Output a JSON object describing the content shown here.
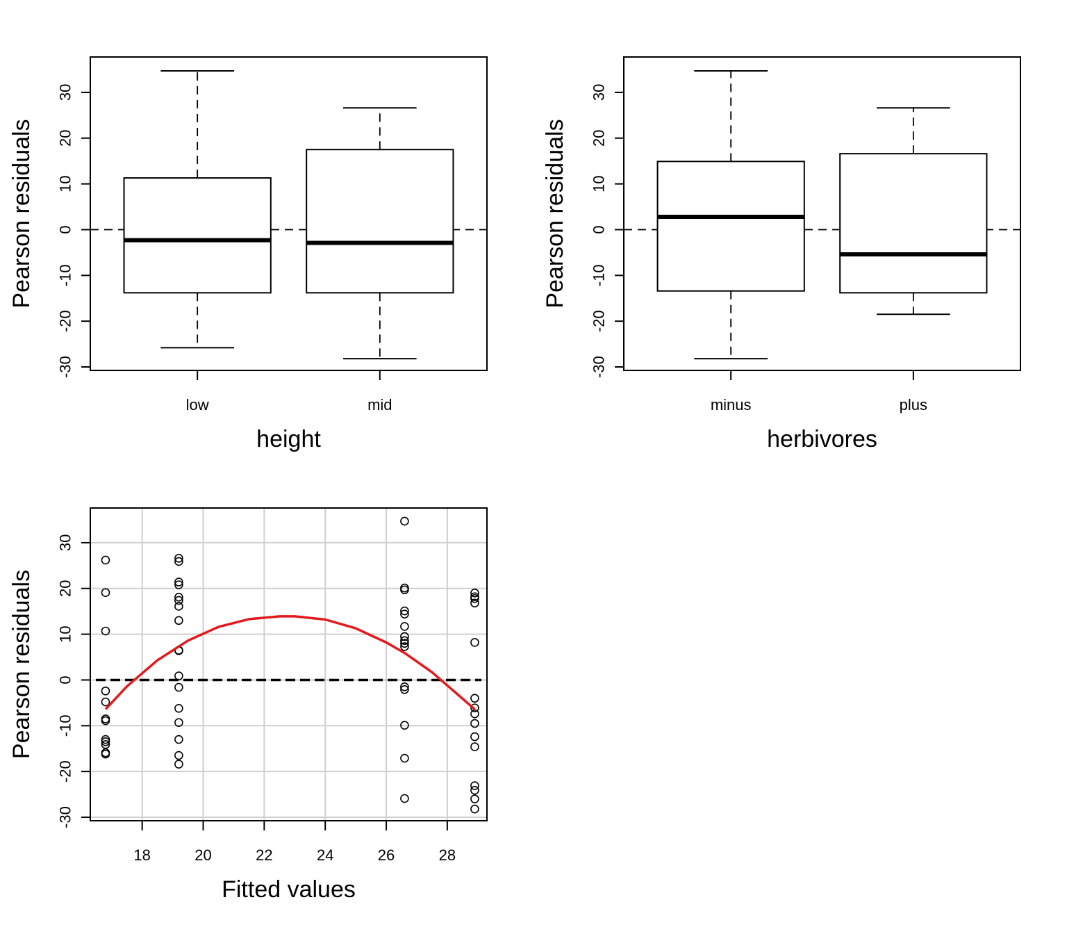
{
  "chart_data": [
    {
      "type": "box",
      "xlabel": "height",
      "ylabel": "Pearson residuals",
      "ylim": [
        -30,
        35
      ],
      "yticks": [
        -30,
        -20,
        -10,
        0,
        10,
        20,
        30
      ],
      "reference_line": {
        "y": 0,
        "style": "dashed"
      },
      "categories": [
        "low",
        "mid"
      ],
      "boxes": [
        {
          "category": "low",
          "whisker_low": -25.8,
          "q1": -13.8,
          "median": -2.3,
          "q3": 11.3,
          "whisker_high": 34.7
        },
        {
          "category": "mid",
          "whisker_low": -28.2,
          "q1": -13.8,
          "median": -2.9,
          "q3": 17.5,
          "whisker_high": 26.6
        }
      ]
    },
    {
      "type": "box",
      "xlabel": "herbivores",
      "ylabel": "Pearson residuals",
      "ylim": [
        -30,
        35
      ],
      "yticks": [
        -30,
        -20,
        -10,
        0,
        10,
        20,
        30
      ],
      "reference_line": {
        "y": 0,
        "style": "dashed"
      },
      "categories": [
        "minus",
        "plus"
      ],
      "boxes": [
        {
          "category": "minus",
          "whisker_low": -28.2,
          "q1": -13.4,
          "median": 2.8,
          "q3": 14.9,
          "whisker_high": 34.7
        },
        {
          "category": "plus",
          "whisker_low": -18.5,
          "q1": -13.8,
          "median": -5.4,
          "q3": 16.6,
          "whisker_high": 26.6
        }
      ]
    },
    {
      "type": "scatter",
      "xlabel": "Fitted values",
      "ylabel": "Pearson residuals",
      "xlim": [
        16.3,
        29.3
      ],
      "ylim": [
        -30,
        35
      ],
      "xticks": [
        18,
        20,
        22,
        24,
        26,
        28
      ],
      "yticks": [
        -30,
        -20,
        -10,
        0,
        10,
        20,
        30
      ],
      "grid": true,
      "reference_line": {
        "y": 0,
        "style": "dashed",
        "weight": "bold"
      },
      "smoother": {
        "color": "#e31a1c",
        "points": [
          [
            16.8,
            -6.4
          ],
          [
            17.5,
            -1.4
          ],
          [
            18.5,
            4.3
          ],
          [
            19.5,
            8.6
          ],
          [
            20.5,
            11.6
          ],
          [
            21.5,
            13.3
          ],
          [
            22.5,
            13.9
          ],
          [
            23.0,
            13.9
          ],
          [
            24.0,
            13.2
          ],
          [
            25.0,
            11.3
          ],
          [
            26.0,
            8.2
          ],
          [
            26.6,
            5.9
          ],
          [
            27.5,
            1.7
          ],
          [
            28.9,
            -6.4
          ]
        ]
      },
      "points": [
        [
          16.8,
          26.2
        ],
        [
          16.8,
          19.1
        ],
        [
          16.8,
          10.7
        ],
        [
          16.8,
          -2.4
        ],
        [
          16.8,
          -4.8
        ],
        [
          16.8,
          -8.5
        ],
        [
          16.8,
          -8.9
        ],
        [
          16.8,
          -13.0
        ],
        [
          16.8,
          -13.5
        ],
        [
          16.8,
          -14.1
        ],
        [
          16.8,
          -15.9
        ],
        [
          16.8,
          -16.2
        ],
        [
          19.2,
          26.6
        ],
        [
          19.2,
          25.9
        ],
        [
          19.2,
          21.4
        ],
        [
          19.2,
          20.8
        ],
        [
          19.2,
          18.1
        ],
        [
          19.2,
          17.4
        ],
        [
          19.2,
          16.1
        ],
        [
          19.2,
          13.0
        ],
        [
          19.2,
          6.5
        ],
        [
          19.2,
          6.4
        ],
        [
          19.2,
          0.9
        ],
        [
          19.2,
          -1.6
        ],
        [
          19.2,
          -6.2
        ],
        [
          19.2,
          -9.3
        ],
        [
          19.2,
          -13.0
        ],
        [
          19.2,
          -16.5
        ],
        [
          19.2,
          -18.4
        ],
        [
          26.6,
          34.7
        ],
        [
          26.6,
          20.1
        ],
        [
          26.6,
          19.7
        ],
        [
          26.6,
          15.1
        ],
        [
          26.6,
          14.4
        ],
        [
          26.6,
          11.7
        ],
        [
          26.6,
          9.5
        ],
        [
          26.6,
          8.6
        ],
        [
          26.6,
          8.0
        ],
        [
          26.6,
          7.3
        ],
        [
          26.6,
          -1.5
        ],
        [
          26.6,
          -2.1
        ],
        [
          26.6,
          -9.9
        ],
        [
          26.6,
          -17.1
        ],
        [
          26.6,
          -25.9
        ],
        [
          28.9,
          19.0
        ],
        [
          28.9,
          18.2
        ],
        [
          28.9,
          17.8
        ],
        [
          28.9,
          16.8
        ],
        [
          28.9,
          8.2
        ],
        [
          28.9,
          -4.0
        ],
        [
          28.9,
          -6.1
        ],
        [
          28.9,
          -7.4
        ],
        [
          28.9,
          -9.5
        ],
        [
          28.9,
          -12.4
        ],
        [
          28.9,
          -14.6
        ],
        [
          28.9,
          -23.1
        ],
        [
          28.9,
          -24.1
        ],
        [
          28.9,
          -26.0
        ],
        [
          28.9,
          -28.2
        ]
      ]
    }
  ]
}
